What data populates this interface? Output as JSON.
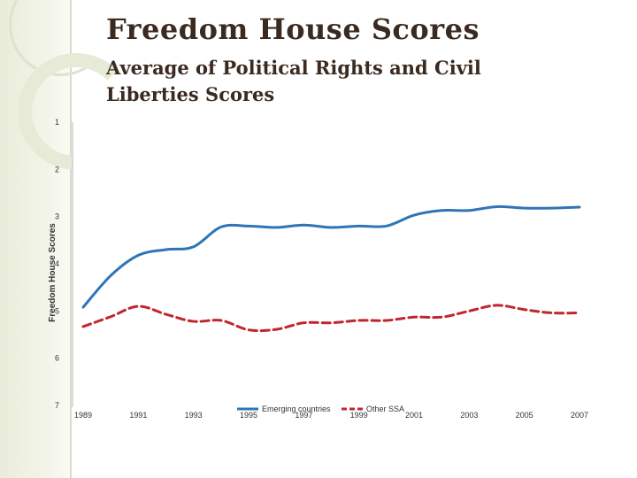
{
  "slide": {
    "title": "Freedom House Scores",
    "subtitle": "Average of Political Rights and Civil Liberties Scores"
  },
  "chart_data": {
    "type": "line",
    "ylabel": "Freedom House Scores",
    "xlabel": "",
    "y_reversed": true,
    "ylim": [
      1,
      7
    ],
    "y_ticks": [
      "1",
      "2",
      "3",
      "4",
      "5",
      "6",
      "7"
    ],
    "x": [
      1989,
      1990,
      1991,
      1992,
      1993,
      1994,
      1995,
      1996,
      1997,
      1998,
      1999,
      2000,
      2001,
      2002,
      2003,
      2004,
      2005,
      2006,
      2007
    ],
    "x_tick_labels": [
      "1989",
      "1991",
      "1993",
      "1995",
      "1997",
      "1999",
      "2001",
      "2003",
      "2005",
      "2007"
    ],
    "legend_position": "bottom",
    "grid": false,
    "series": [
      {
        "name": "Emerging countries",
        "color": "#2f75b5",
        "style": "solid",
        "values": [
          4.92,
          4.25,
          3.82,
          3.7,
          3.64,
          3.22,
          3.2,
          3.23,
          3.18,
          3.23,
          3.2,
          3.2,
          2.97,
          2.87,
          2.87,
          2.79,
          2.82,
          2.82,
          2.8
        ]
      },
      {
        "name": "Other SSA",
        "color": "#c0272d",
        "style": "dashed",
        "values": [
          5.33,
          5.12,
          4.9,
          5.07,
          5.22,
          5.2,
          5.4,
          5.39,
          5.25,
          5.25,
          5.2,
          5.2,
          5.13,
          5.13,
          5.0,
          4.88,
          4.97,
          5.04,
          5.04
        ]
      }
    ]
  }
}
